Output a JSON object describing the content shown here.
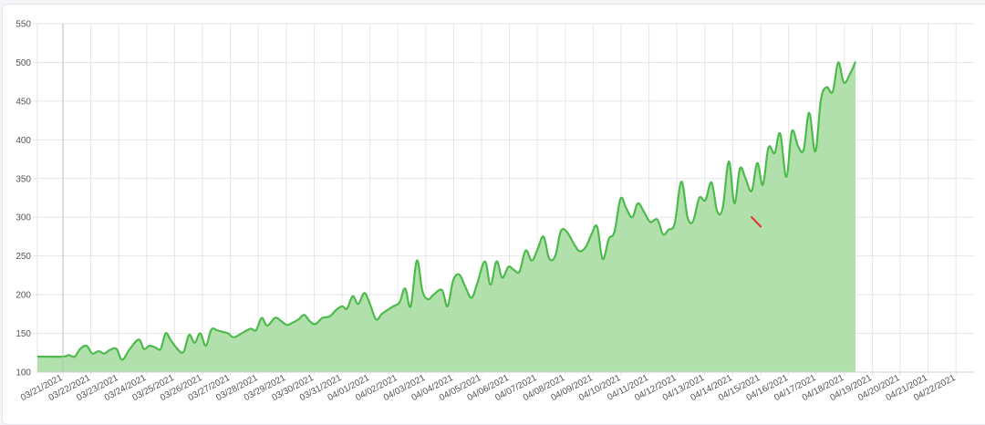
{
  "chart_data": {
    "type": "area",
    "title": "",
    "xlabel": "",
    "ylabel": "",
    "ylim": [
      100,
      550
    ],
    "yticks": [
      100,
      150,
      200,
      250,
      300,
      350,
      400,
      450,
      500,
      550
    ],
    "grid": true,
    "legend": "none",
    "colors": {
      "line": "#4cbb4c",
      "fill": "#b2e0ac",
      "highlight": "#e03b2c",
      "grid": "#e6e6e6",
      "axis": "#cfcfcf"
    },
    "x_tick_labels": [
      "03/21/2021",
      "03/22/2021",
      "03/23/2021",
      "03/24/2021",
      "03/25/2021",
      "03/26/2021",
      "03/27/2021",
      "03/28/2021",
      "03/29/2021",
      "03/30/2021",
      "03/31/2021",
      "04/01/2021",
      "04/02/2021",
      "04/03/2021",
      "04/04/2021",
      "04/05/2021",
      "04/06/2021",
      "04/07/2021",
      "04/08/2021",
      "04/09/2021",
      "04/10/2021",
      "04/11/2021",
      "04/12/2021",
      "04/13/2021",
      "04/14/2021",
      "04/15/2021",
      "04/16/2021",
      "04/17/2021",
      "04/18/2021",
      "04/19/2021",
      "04/20/2021",
      "04/21/2021",
      "04/22/2021"
    ],
    "x_start": "03/21/2021",
    "x_end": "04/22/2021",
    "series": [
      {
        "values": [
          [
            0.0,
            120
          ],
          [
            0.2,
            122
          ],
          [
            0.42,
            120
          ],
          [
            0.62,
            130
          ],
          [
            0.85,
            134
          ],
          [
            1.05,
            124
          ],
          [
            1.28,
            127
          ],
          [
            1.48,
            124
          ],
          [
            1.7,
            129
          ],
          [
            1.92,
            130
          ],
          [
            2.12,
            116
          ],
          [
            2.4,
            130
          ],
          [
            2.72,
            142
          ],
          [
            2.9,
            130
          ],
          [
            3.1,
            134
          ],
          [
            3.3,
            132
          ],
          [
            3.5,
            130
          ],
          [
            3.68,
            150
          ],
          [
            3.85,
            142
          ],
          [
            4.1,
            130
          ],
          [
            4.32,
            126
          ],
          [
            4.52,
            148
          ],
          [
            4.72,
            138
          ],
          [
            4.92,
            150
          ],
          [
            5.12,
            134
          ],
          [
            5.32,
            155
          ],
          [
            5.52,
            154
          ],
          [
            5.72,
            152
          ],
          [
            5.92,
            150
          ],
          [
            6.12,
            145
          ],
          [
            6.4,
            150
          ],
          [
            6.72,
            156
          ],
          [
            6.92,
            154
          ],
          [
            7.12,
            170
          ],
          [
            7.32,
            160
          ],
          [
            7.6,
            170
          ],
          [
            7.82,
            166
          ],
          [
            8.02,
            161
          ],
          [
            8.24,
            164
          ],
          [
            8.44,
            168
          ],
          [
            8.64,
            174
          ],
          [
            8.84,
            166
          ],
          [
            9.04,
            162
          ],
          [
            9.3,
            170
          ],
          [
            9.56,
            172
          ],
          [
            9.78,
            180
          ],
          [
            10.0,
            185
          ],
          [
            10.18,
            182
          ],
          [
            10.38,
            198
          ],
          [
            10.58,
            188
          ],
          [
            10.8,
            202
          ],
          [
            11.0,
            188
          ],
          [
            11.22,
            168
          ],
          [
            11.42,
            175
          ],
          [
            11.62,
            180
          ],
          [
            11.84,
            185
          ],
          [
            12.06,
            190
          ],
          [
            12.26,
            208
          ],
          [
            12.46,
            185
          ],
          [
            12.68,
            244
          ],
          [
            12.88,
            205
          ],
          [
            13.08,
            194
          ],
          [
            13.28,
            200
          ],
          [
            13.58,
            206
          ],
          [
            13.78,
            185
          ],
          [
            13.98,
            218
          ],
          [
            14.2,
            226
          ],
          [
            14.42,
            210
          ],
          [
            14.64,
            196
          ],
          [
            14.84,
            214
          ],
          [
            15.12,
            243
          ],
          [
            15.32,
            213
          ],
          [
            15.54,
            243
          ],
          [
            15.74,
            222
          ],
          [
            15.96,
            236
          ],
          [
            16.16,
            232
          ],
          [
            16.36,
            230
          ],
          [
            16.58,
            257
          ],
          [
            16.8,
            244
          ],
          [
            17.0,
            258
          ],
          [
            17.22,
            275
          ],
          [
            17.42,
            247
          ],
          [
            17.64,
            250
          ],
          [
            17.84,
            282
          ],
          [
            18.06,
            281
          ],
          [
            18.32,
            265
          ],
          [
            18.52,
            256
          ],
          [
            18.74,
            262
          ],
          [
            18.94,
            278
          ],
          [
            19.14,
            288
          ],
          [
            19.34,
            246
          ],
          [
            19.56,
            272
          ],
          [
            19.76,
            281
          ],
          [
            19.98,
            324
          ],
          [
            20.18,
            312
          ],
          [
            20.4,
            300
          ],
          [
            20.6,
            318
          ],
          [
            20.82,
            307
          ],
          [
            21.04,
            294
          ],
          [
            21.3,
            297
          ],
          [
            21.5,
            278
          ],
          [
            21.7,
            284
          ],
          [
            21.92,
            292
          ],
          [
            22.16,
            346
          ],
          [
            22.38,
            300
          ],
          [
            22.58,
            295
          ],
          [
            22.8,
            325
          ],
          [
            23.02,
            322
          ],
          [
            23.24,
            345
          ],
          [
            23.44,
            308
          ],
          [
            23.64,
            312
          ],
          [
            23.86,
            372
          ],
          [
            24.06,
            318
          ],
          [
            24.26,
            363
          ],
          [
            24.46,
            350
          ],
          [
            24.68,
            334
          ],
          [
            24.88,
            370
          ],
          [
            25.08,
            342
          ],
          [
            25.28,
            390
          ],
          [
            25.5,
            383
          ],
          [
            25.7,
            408
          ],
          [
            25.92,
            352
          ],
          [
            26.12,
            411
          ],
          [
            26.34,
            392
          ],
          [
            26.54,
            387
          ],
          [
            26.74,
            435
          ],
          [
            26.96,
            385
          ],
          [
            27.16,
            452
          ],
          [
            27.36,
            468
          ],
          [
            27.58,
            462
          ],
          [
            27.78,
            500
          ],
          [
            27.98,
            474
          ],
          [
            28.2,
            485
          ],
          [
            28.4,
            501
          ]
        ]
      }
    ],
    "highlight_segment": [
      [
        24.68,
        300
      ],
      [
        25.0,
        288
      ]
    ]
  }
}
